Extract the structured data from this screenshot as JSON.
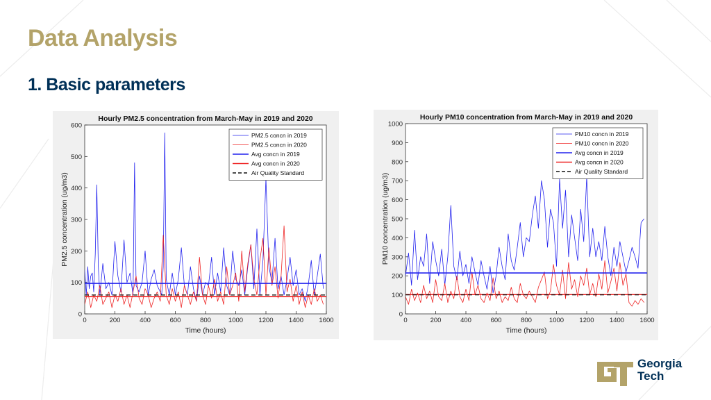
{
  "slide": {
    "title": "Data Analysis",
    "subtitle": "1. Basic parameters"
  },
  "logo": {
    "line1": "Georgia",
    "line2": "Tech",
    "mark": "GT",
    "colors": {
      "gold": "#b3a369",
      "navy": "#003057"
    }
  },
  "chart_data": [
    {
      "type": "line",
      "title": "Hourly PM2.5 concentration from March-May in 2019 and 2020",
      "xlabel": "Time (hours)",
      "ylabel": "PM2.5 concentration (ug/m3)",
      "xlim": [
        0,
        1600
      ],
      "ylim": [
        0,
        600
      ],
      "xticks": [
        0,
        200,
        400,
        600,
        800,
        1000,
        1200,
        1400,
        1600
      ],
      "yticks": [
        0,
        100,
        200,
        300,
        400,
        500,
        600
      ],
      "grid": false,
      "legend_position": "top-right",
      "series": [
        {
          "name": "PM2.5 concn in 2019",
          "color": "#2222ee",
          "style": "thin",
          "x": [
            0,
            10,
            20,
            30,
            40,
            50,
            60,
            70,
            80,
            90,
            100,
            120,
            140,
            160,
            180,
            200,
            220,
            240,
            260,
            280,
            300,
            320,
            330,
            340,
            360,
            380,
            400,
            420,
            440,
            460,
            480,
            500,
            510,
            520,
            530,
            540,
            560,
            580,
            600,
            620,
            640,
            660,
            680,
            700,
            720,
            740,
            760,
            780,
            800,
            820,
            840,
            860,
            880,
            900,
            920,
            940,
            960,
            980,
            1000,
            1020,
            1040,
            1060,
            1080,
            1100,
            1120,
            1140,
            1160,
            1180,
            1200,
            1220,
            1240,
            1260,
            1280,
            1300,
            1320,
            1340,
            1360,
            1380,
            1400,
            1420,
            1440,
            1460,
            1480,
            1500,
            1520,
            1540,
            1560,
            1580
          ],
          "values": [
            140,
            60,
            150,
            80,
            120,
            130,
            70,
            190,
            410,
            150,
            60,
            160,
            80,
            100,
            60,
            230,
            120,
            70,
            235,
            100,
            130,
            60,
            480,
            90,
            70,
            100,
            200,
            60,
            110,
            140,
            90,
            70,
            60,
            150,
            575,
            110,
            60,
            130,
            60,
            110,
            210,
            90,
            60,
            150,
            80,
            40,
            120,
            60,
            100,
            90,
            180,
            60,
            130,
            70,
            210,
            90,
            60,
            200,
            110,
            90,
            140,
            60,
            150,
            220,
            80,
            270,
            60,
            170,
            430,
            150,
            100,
            240,
            80,
            120,
            60,
            110,
            180,
            90,
            140,
            60,
            80,
            40,
            90,
            170,
            60,
            120,
            190,
            80
          ]
        },
        {
          "name": "PM2.5 concn in 2020",
          "color": "#ee2222",
          "style": "thin",
          "x": [
            0,
            20,
            40,
            60,
            80,
            100,
            120,
            140,
            160,
            180,
            200,
            220,
            240,
            260,
            280,
            300,
            320,
            340,
            360,
            380,
            400,
            420,
            440,
            460,
            480,
            500,
            520,
            540,
            560,
            580,
            600,
            620,
            640,
            660,
            680,
            700,
            720,
            740,
            760,
            780,
            800,
            820,
            840,
            860,
            880,
            900,
            920,
            940,
            960,
            980,
            1000,
            1020,
            1040,
            1060,
            1080,
            1100,
            1120,
            1140,
            1160,
            1180,
            1200,
            1220,
            1240,
            1260,
            1280,
            1300,
            1320,
            1340,
            1360,
            1380,
            1400,
            1420,
            1440,
            1460,
            1480,
            1500,
            1520,
            1540,
            1560,
            1580
          ],
          "values": [
            30,
            70,
            20,
            60,
            40,
            90,
            30,
            50,
            70,
            20,
            60,
            40,
            80,
            30,
            60,
            20,
            70,
            120,
            50,
            30,
            80,
            60,
            20,
            50,
            70,
            40,
            250,
            60,
            30,
            80,
            40,
            70,
            20,
            90,
            60,
            30,
            70,
            40,
            180,
            60,
            30,
            90,
            50,
            110,
            40,
            70,
            30,
            150,
            60,
            90,
            130,
            40,
            200,
            70,
            160,
            220,
            110,
            60,
            170,
            240,
            60,
            210,
            90,
            150,
            50,
            120,
            280,
            70,
            110,
            40,
            90,
            30,
            70,
            20,
            60,
            30,
            80,
            40,
            60,
            30
          ]
        },
        {
          "name": "Avg concn in 2019",
          "color": "#2222ee",
          "style": "thick",
          "constant": 97
        },
        {
          "name": "Avg concn in 2020",
          "color": "#ee2222",
          "style": "thick",
          "constant": 55
        },
        {
          "name": "Air Quality Standard",
          "color": "#111111",
          "style": "dashed",
          "constant": 60
        }
      ]
    },
    {
      "type": "line",
      "title": "Hourly PM10 concentration from March-May in 2019 and 2020",
      "xlabel": "Time (hours)",
      "ylabel": "PM10 concentration (ug/m3)",
      "xlim": [
        0,
        1600
      ],
      "ylim": [
        0,
        1000
      ],
      "xticks": [
        0,
        200,
        400,
        600,
        800,
        1000,
        1200,
        1400,
        1600
      ],
      "yticks": [
        0,
        100,
        200,
        300,
        400,
        500,
        600,
        700,
        800,
        900,
        1000
      ],
      "grid": false,
      "legend_position": "top-right",
      "series": [
        {
          "name": "PM10 concn in 2019",
          "color": "#2222ee",
          "style": "thin",
          "x": [
            0,
            20,
            40,
            60,
            80,
            100,
            120,
            140,
            160,
            180,
            200,
            220,
            240,
            260,
            280,
            300,
            320,
            340,
            360,
            380,
            400,
            420,
            440,
            460,
            480,
            500,
            520,
            540,
            560,
            580,
            600,
            620,
            640,
            660,
            680,
            700,
            720,
            740,
            760,
            780,
            800,
            820,
            840,
            860,
            880,
            900,
            920,
            940,
            960,
            980,
            1000,
            1020,
            1040,
            1060,
            1080,
            1100,
            1120,
            1140,
            1160,
            1180,
            1200,
            1220,
            1240,
            1260,
            1280,
            1300,
            1320,
            1340,
            1360,
            1380,
            1400,
            1420,
            1440,
            1460,
            1480,
            1500,
            1520,
            1540,
            1560,
            1580
          ],
          "values": [
            200,
            320,
            150,
            440,
            180,
            300,
            250,
            420,
            160,
            380,
            280,
            200,
            340,
            150,
            300,
            570,
            250,
            180,
            330,
            200,
            260,
            160,
            300,
            220,
            150,
            280,
            200,
            130,
            250,
            110,
            200,
            350,
            250,
            180,
            420,
            280,
            230,
            350,
            480,
            300,
            400,
            380,
            520,
            620,
            450,
            700,
            600,
            350,
            550,
            480,
            250,
            710,
            450,
            650,
            300,
            520,
            400,
            280,
            550,
            380,
            720,
            300,
            450,
            300,
            380,
            280,
            460,
            300,
            200,
            350,
            250,
            380,
            300,
            220,
            280,
            350,
            300,
            240,
            480,
            500
          ]
        },
        {
          "name": "PM10 concn in 2020",
          "color": "#ee2222",
          "style": "thin",
          "x": [
            0,
            20,
            40,
            60,
            80,
            100,
            120,
            140,
            160,
            180,
            200,
            220,
            240,
            260,
            280,
            300,
            320,
            340,
            360,
            380,
            400,
            420,
            440,
            460,
            480,
            500,
            520,
            540,
            560,
            580,
            600,
            620,
            640,
            660,
            680,
            700,
            720,
            740,
            760,
            780,
            800,
            820,
            840,
            860,
            880,
            900,
            920,
            940,
            960,
            980,
            1000,
            1020,
            1040,
            1060,
            1080,
            1100,
            1120,
            1140,
            1160,
            1180,
            1200,
            1220,
            1240,
            1260,
            1280,
            1300,
            1320,
            1340,
            1360,
            1380,
            1400,
            1420,
            1440,
            1460,
            1480,
            1500,
            1520,
            1540,
            1560,
            1580
          ],
          "values": [
            90,
            50,
            130,
            70,
            110,
            60,
            150,
            80,
            120,
            60,
            180,
            90,
            70,
            160,
            60,
            120,
            80,
            200,
            90,
            60,
            130,
            70,
            220,
            100,
            150,
            80,
            60,
            110,
            70,
            190,
            80,
            120,
            60,
            90,
            70,
            140,
            80,
            60,
            160,
            100,
            80,
            120,
            90,
            60,
            140,
            180,
            220,
            80,
            120,
            260,
            150,
            100,
            230,
            80,
            270,
            130,
            180,
            90,
            200,
            150,
            240,
            100,
            160,
            90,
            210,
            130,
            280,
            110,
            170,
            240,
            120,
            270,
            150,
            210,
            60,
            40,
            70,
            50,
            80,
            60
          ]
        },
        {
          "name": "Avg concn in 2019",
          "color": "#2222ee",
          "style": "thick",
          "constant": 215
        },
        {
          "name": "Avg concn in 2020",
          "color": "#ee2222",
          "style": "thick",
          "constant": 102
        },
        {
          "name": "Air Quality Standard",
          "color": "#111111",
          "style": "dashed",
          "constant": 100
        }
      ]
    }
  ]
}
